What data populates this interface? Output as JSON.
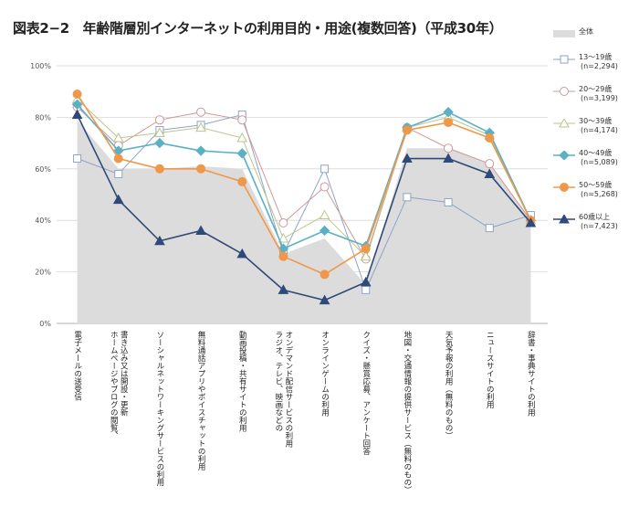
{
  "chart_data": {
    "type": "line",
    "title": "図表2−2　年齢階層別インターネットの利用目的・用途(複数回答)（平成30年）",
    "ylim": [
      0,
      100
    ],
    "yticks": [
      "0%",
      "20%",
      "40%",
      "60%",
      "80%",
      "100%"
    ],
    "categories": [
      [
        "電子メールの送受信"
      ],
      [
        "ホームページやブログの閲覧、",
        "書き込み又は開設・更新"
      ],
      [
        "ソーシャルネットワーキングサービスの利用"
      ],
      [
        "無料通話アプリやボイスチャットの利用"
      ],
      [
        "動画投稿・共有サイトの利用"
      ],
      [
        "ラジオ、テレビ、映画などの",
        "オンデマンド配信サービスの利用"
      ],
      [
        "オンラインゲームの利用"
      ],
      [
        "クイズ・懸賞応募、アンケート回答"
      ],
      [
        "地図・交通情報の提供サービス（無料のもの）"
      ],
      [
        "天気予報の利用（無料のもの）"
      ],
      [
        "ニュースサイトの利用"
      ],
      [
        "辞書・事典サイトの利用"
      ]
    ],
    "total": {
      "name": "全体",
      "color": "#dcdcdc",
      "values": [
        79,
        60,
        60,
        61,
        60,
        27,
        33,
        15,
        68,
        68,
        62,
        40
      ]
    },
    "series": [
      {
        "name": "13〜19歳",
        "n": "(n=2,294)",
        "color": "#8ea4c8",
        "marker": "square",
        "width": 1,
        "values": [
          64,
          58,
          75,
          77,
          81,
          27,
          60,
          13,
          49,
          47,
          37,
          42
        ]
      },
      {
        "name": "20〜29歳",
        "n": "(n=3,199)",
        "color": "#cf9898",
        "marker": "circle",
        "width": 1,
        "values": [
          84,
          69,
          79,
          82,
          79,
          39,
          53,
          25,
          76,
          68,
          62,
          40
        ]
      },
      {
        "name": "30〜39歳",
        "n": "(n=4,174)",
        "color": "#b8c78b",
        "marker": "triangle",
        "width": 1,
        "values": [
          87,
          72,
          74,
          76,
          72,
          33,
          42,
          26,
          76,
          80,
          73,
          40
        ]
      },
      {
        "name": "40〜49歳",
        "n": "(n=5,089)",
        "color": "#5ab0c4",
        "marker": "diamond",
        "width": 1.6,
        "values": [
          85,
          67,
          70,
          67,
          66,
          29,
          36,
          30,
          76,
          82,
          74,
          40
        ]
      },
      {
        "name": "50〜59歳",
        "n": "(n=5,268)",
        "color": "#f0984a",
        "marker": "circle",
        "width": 1.6,
        "values": [
          89,
          64,
          60,
          60,
          55,
          26,
          19,
          29,
          75,
          78,
          72,
          40
        ]
      },
      {
        "name": "60歳以上",
        "n": "(n=7,423)",
        "color": "#2f4a78",
        "marker": "triangle",
        "width": 1.6,
        "values": [
          81,
          48,
          32,
          36,
          27,
          13,
          9,
          16,
          64,
          64,
          58,
          39
        ]
      }
    ]
  }
}
